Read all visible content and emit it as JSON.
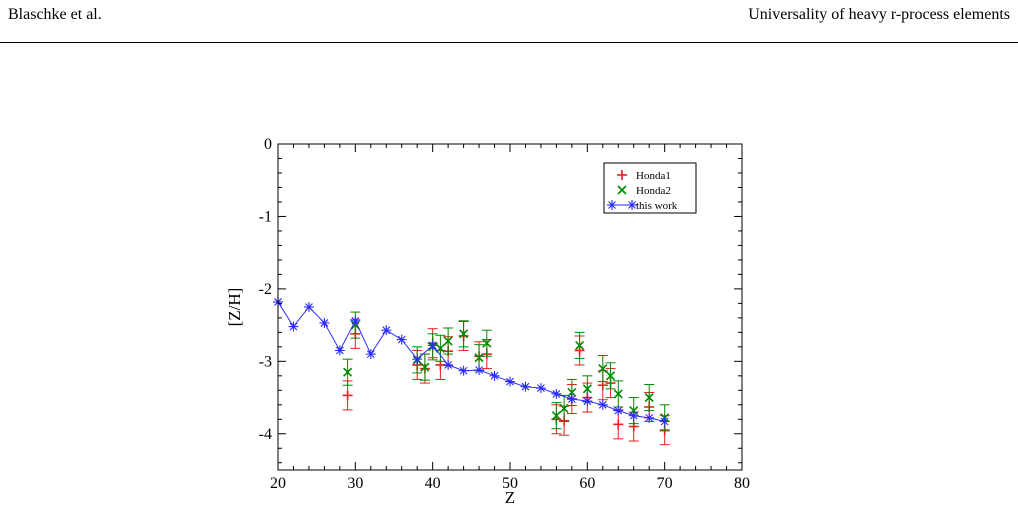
{
  "header": {
    "left": "Blaschke et al.",
    "right": "Universality of heavy r-process elements"
  },
  "chart_data": {
    "type": "scatter",
    "xlabel": "Z",
    "ylabel": "[Z/H]",
    "xlim": [
      20,
      80
    ],
    "ylim": [
      -4.5,
      0
    ],
    "xticks": [
      "20",
      "30",
      "40",
      "50",
      "60",
      "70",
      "80"
    ],
    "yticks": [
      "0",
      "-1",
      "-2",
      "-3",
      "-4"
    ],
    "legend_position": "top-right",
    "series": [
      {
        "name": "Honda1",
        "color": "#e8201e",
        "marker": "plus",
        "points": [
          {
            "x": 29,
            "y": -3.47,
            "err": 0.2
          },
          {
            "x": 30,
            "y": -2.62,
            "err": 0.2
          },
          {
            "x": 38,
            "y": -3.05,
            "err": 0.2
          },
          {
            "x": 39,
            "y": -3.1,
            "err": 0.2
          },
          {
            "x": 40,
            "y": -2.75,
            "err": 0.2
          },
          {
            "x": 41,
            "y": -3.05,
            "err": 0.2
          },
          {
            "x": 42,
            "y": -2.86,
            "err": 0.2
          },
          {
            "x": 44,
            "y": -2.65,
            "err": 0.2
          },
          {
            "x": 46,
            "y": -2.93,
            "err": 0.2
          },
          {
            "x": 47,
            "y": -2.9,
            "err": 0.2
          },
          {
            "x": 56,
            "y": -3.8,
            "err": 0.2
          },
          {
            "x": 57,
            "y": -3.82,
            "err": 0.2
          },
          {
            "x": 58,
            "y": -3.52,
            "err": 0.2
          },
          {
            "x": 59,
            "y": -2.85,
            "err": 0.2
          },
          {
            "x": 60,
            "y": -3.5,
            "err": 0.2
          },
          {
            "x": 62,
            "y": -3.33,
            "err": 0.2
          },
          {
            "x": 63,
            "y": -3.3,
            "err": 0.2
          },
          {
            "x": 64,
            "y": -3.87,
            "err": 0.2
          },
          {
            "x": 66,
            "y": -3.9,
            "err": 0.2
          },
          {
            "x": 68,
            "y": -3.63,
            "err": 0.2
          },
          {
            "x": 70,
            "y": -3.95,
            "err": 0.2
          }
        ]
      },
      {
        "name": "Honda2",
        "color": "#008a00",
        "marker": "cross",
        "points": [
          {
            "x": 29,
            "y": -3.15,
            "err": 0.18
          },
          {
            "x": 30,
            "y": -2.5,
            "err": 0.18
          },
          {
            "x": 38,
            "y": -2.98,
            "err": 0.18
          },
          {
            "x": 39,
            "y": -3.08,
            "err": 0.18
          },
          {
            "x": 40,
            "y": -2.8,
            "err": 0.18
          },
          {
            "x": 41,
            "y": -2.82,
            "err": 0.18
          },
          {
            "x": 42,
            "y": -2.72,
            "err": 0.18
          },
          {
            "x": 44,
            "y": -2.62,
            "err": 0.18
          },
          {
            "x": 46,
            "y": -2.95,
            "err": 0.18
          },
          {
            "x": 47,
            "y": -2.75,
            "err": 0.18
          },
          {
            "x": 56,
            "y": -3.75,
            "err": 0.18
          },
          {
            "x": 57,
            "y": -3.65,
            "err": 0.18
          },
          {
            "x": 58,
            "y": -3.43,
            "err": 0.18
          },
          {
            "x": 59,
            "y": -2.78,
            "err": 0.18
          },
          {
            "x": 60,
            "y": -3.38,
            "err": 0.18
          },
          {
            "x": 62,
            "y": -3.1,
            "err": 0.18
          },
          {
            "x": 63,
            "y": -3.2,
            "err": 0.18
          },
          {
            "x": 64,
            "y": -3.45,
            "err": 0.18
          },
          {
            "x": 66,
            "y": -3.68,
            "err": 0.18
          },
          {
            "x": 68,
            "y": -3.5,
            "err": 0.18
          },
          {
            "x": 70,
            "y": -3.78,
            "err": 0.18
          }
        ]
      },
      {
        "name": "this work",
        "color": "#2b2bff",
        "marker": "asterisk",
        "line": true,
        "points": [
          {
            "x": 20,
            "y": -2.18
          },
          {
            "x": 22,
            "y": -2.52
          },
          {
            "x": 24,
            "y": -2.25
          },
          {
            "x": 26,
            "y": -2.47
          },
          {
            "x": 28,
            "y": -2.85
          },
          {
            "x": 30,
            "y": -2.44
          },
          {
            "x": 32,
            "y": -2.9
          },
          {
            "x": 34,
            "y": -2.57
          },
          {
            "x": 36,
            "y": -2.7
          },
          {
            "x": 38,
            "y": -2.97
          },
          {
            "x": 40,
            "y": -2.78
          },
          {
            "x": 42,
            "y": -3.05
          },
          {
            "x": 44,
            "y": -3.13
          },
          {
            "x": 46,
            "y": -3.12
          },
          {
            "x": 48,
            "y": -3.2
          },
          {
            "x": 50,
            "y": -3.28
          },
          {
            "x": 52,
            "y": -3.35
          },
          {
            "x": 54,
            "y": -3.37
          },
          {
            "x": 56,
            "y": -3.45
          },
          {
            "x": 58,
            "y": -3.52
          },
          {
            "x": 60,
            "y": -3.55
          },
          {
            "x": 62,
            "y": -3.6
          },
          {
            "x": 64,
            "y": -3.68
          },
          {
            "x": 66,
            "y": -3.75
          },
          {
            "x": 68,
            "y": -3.78
          },
          {
            "x": 70,
            "y": -3.83
          }
        ]
      }
    ]
  }
}
